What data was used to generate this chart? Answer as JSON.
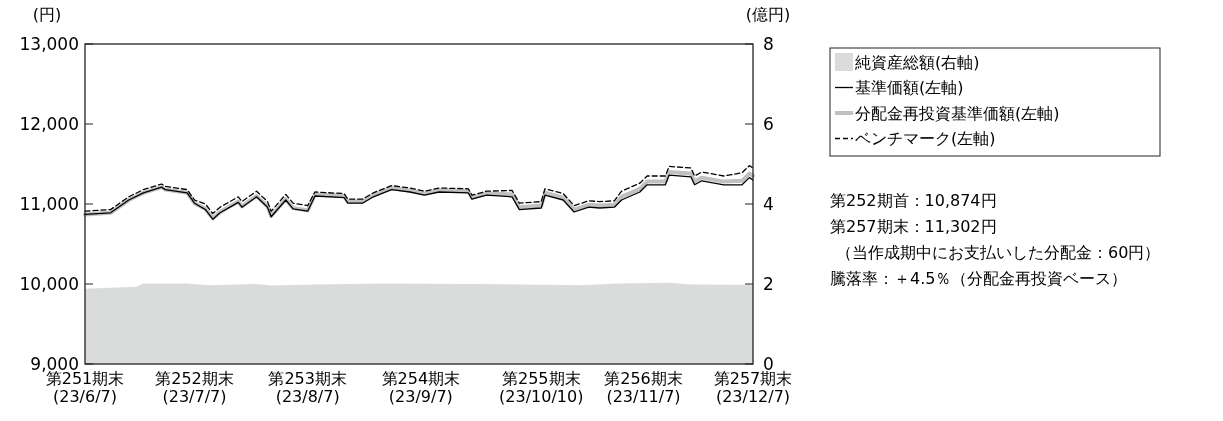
{
  "chart_data": {
    "type": "line",
    "ylabel": "(円)",
    "y2label": "(億円)",
    "x": [
      "2023-06-07",
      "2023-06-14",
      "2023-06-19",
      "2023-06-23",
      "2023-06-28",
      "2023-06-29",
      "2023-07-05",
      "2023-07-07",
      "2023-07-10",
      "2023-07-12",
      "2023-07-14",
      "2023-07-19",
      "2023-07-20",
      "2023-07-24",
      "2023-07-27",
      "2023-07-28",
      "2023-08-01",
      "2023-08-03",
      "2023-08-07",
      "2023-08-09",
      "2023-08-17",
      "2023-08-18",
      "2023-08-22",
      "2023-08-25",
      "2023-08-30",
      "2023-09-04",
      "2023-09-08",
      "2023-09-12",
      "2023-09-20",
      "2023-09-21",
      "2023-09-25",
      "2023-10-02",
      "2023-10-04",
      "2023-10-10",
      "2023-10-11",
      "2023-10-16",
      "2023-10-19",
      "2023-10-23",
      "2023-10-26",
      "2023-10-30",
      "2023-11-01",
      "2023-11-06",
      "2023-11-08",
      "2023-11-13",
      "2023-11-14",
      "2023-11-20",
      "2023-11-21",
      "2023-11-23",
      "2023-11-29",
      "2023-12-04",
      "2023-12-06",
      "2023-12-07"
    ],
    "series": [
      {
        "name": "純資産総額(右軸)",
        "type": "area",
        "axis": "y2",
        "color": "#dadcdb",
        "x": [
          "2023-06-07",
          "2023-06-21",
          "2023-06-23",
          "2023-07-05",
          "2023-07-11",
          "2023-07-24",
          "2023-07-28",
          "2023-08-09",
          "2023-08-28",
          "2023-10-03",
          "2023-10-11",
          "2023-10-21",
          "2023-10-31",
          "2023-11-14",
          "2023-11-20",
          "2023-12-06",
          "2023-12-07"
        ],
        "values": [
          1.88,
          1.93,
          2.01,
          2.01,
          1.97,
          2.0,
          1.96,
          1.99,
          2.01,
          1.99,
          1.98,
          1.97,
          2.01,
          2.03,
          1.99,
          1.98,
          1.97
        ]
      },
      {
        "name": "基準価額(左軸)",
        "color": "#000000",
        "line_style": "solid",
        "values": [
          10870,
          10890,
          11050,
          11140,
          11210,
          11180,
          11140,
          11010,
          10930,
          10810,
          10890,
          11020,
          10960,
          11090,
          10960,
          10840,
          11050,
          10940,
          10910,
          11100,
          11080,
          11010,
          11010,
          11090,
          11180,
          11150,
          11110,
          11150,
          11140,
          11060,
          11110,
          11090,
          10930,
          10950,
          11110,
          11050,
          10900,
          10960,
          10950,
          10960,
          11050,
          11150,
          11240,
          11240,
          11360,
          11340,
          11240,
          11290,
          11240,
          11240,
          11330,
          11300
        ]
      },
      {
        "name": "分配金再投資基準価額(左軸)",
        "color": "#c0c0c0",
        "line_style": "solid",
        "values": [
          10870,
          10890,
          11050,
          11140,
          11210,
          11180,
          11140,
          11010,
          10940,
          10820,
          10900,
          11030,
          10970,
          11100,
          10970,
          10850,
          11060,
          10950,
          10920,
          11120,
          11100,
          11030,
          11030,
          11110,
          11200,
          11170,
          11130,
          11170,
          11160,
          11080,
          11130,
          11120,
          10960,
          10980,
          11140,
          11080,
          10930,
          10990,
          10980,
          10990,
          11090,
          11190,
          11280,
          11280,
          11400,
          11380,
          11280,
          11330,
          11280,
          11290,
          11380,
          11350
        ]
      },
      {
        "name": "ベンチマーク(左軸)",
        "color": "#000000",
        "line_style": "dashed",
        "values": [
          10910,
          10930,
          11090,
          11180,
          11250,
          11220,
          11180,
          11050,
          11000,
          10880,
          10960,
          11090,
          11030,
          11160,
          11030,
          10910,
          11120,
          11010,
          10980,
          11150,
          11130,
          11060,
          11060,
          11140,
          11230,
          11200,
          11160,
          11200,
          11190,
          11110,
          11160,
          11170,
          11010,
          11030,
          11190,
          11130,
          10980,
          11040,
          11030,
          11040,
          11160,
          11260,
          11350,
          11350,
          11470,
          11450,
          11350,
          11400,
          11350,
          11390,
          11480,
          11450
        ]
      }
    ],
    "xlim": [
      "2023-06-07",
      "2023-12-07"
    ],
    "xticks": [
      {
        "value": "2023-06-07",
        "label": "第251期末\n(23/6/7)"
      },
      {
        "value": "2023-07-07",
        "label": "第252期末\n(23/7/7)"
      },
      {
        "value": "2023-08-07",
        "label": "第253期末\n(23/8/7)"
      },
      {
        "value": "2023-09-07",
        "label": "第254期末\n(23/9/7)"
      },
      {
        "value": "2023-10-10",
        "label": "第255期末\n(23/10/10)"
      },
      {
        "value": "2023-11-07",
        "label": "第256期末\n(23/11/7)"
      },
      {
        "value": "2023-12-07",
        "label": "第257期末\n(23/12/7)"
      }
    ],
    "ylim": [
      9000,
      13000
    ],
    "yticks": [
      {
        "value": 9000,
        "label": "9,000"
      },
      {
        "value": 10000,
        "label": "10,000"
      },
      {
        "value": 11000,
        "label": "11,000"
      },
      {
        "value": 12000,
        "label": "12,000"
      },
      {
        "value": 13000,
        "label": "13,000"
      }
    ],
    "y2lim": [
      0,
      8
    ],
    "y2ticks": [
      0,
      2,
      4,
      6,
      8
    ],
    "legend": "right",
    "grid": false,
    "annotations": [
      "第252期首：10,874円",
      "第257期末：11,302円",
      "（当作成期中にお支払いした分配金：60円）",
      "騰落率：＋4.5％（分配金再投資ベース）"
    ]
  }
}
